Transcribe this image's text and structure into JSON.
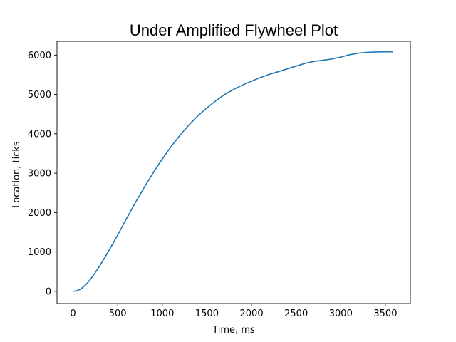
{
  "chart_data": {
    "type": "line",
    "title": "Under Amplified Flywheel Plot",
    "xlabel": "Time, ms",
    "ylabel": "Location, ticks",
    "xlim": [
      -180,
      3780
    ],
    "ylim": [
      -310,
      6350
    ],
    "xticks": [
      0,
      500,
      1000,
      1500,
      2000,
      2500,
      3000,
      3500
    ],
    "yticks": [
      0,
      1000,
      2000,
      3000,
      4000,
      5000,
      6000
    ],
    "grid": false,
    "legend": "none",
    "colors": {
      "series": "#1f77b4"
    },
    "series": [
      {
        "x": [
          0,
          40,
          80,
          120,
          160,
          200,
          250,
          300,
          350,
          400,
          450,
          500,
          600,
          700,
          800,
          900,
          1000,
          1100,
          1200,
          1300,
          1400,
          1500,
          1600,
          1700,
          1800,
          1900,
          2000,
          2100,
          2200,
          2300,
          2400,
          2500,
          2600,
          2700,
          2800,
          2900,
          3000,
          3100,
          3200,
          3300,
          3400,
          3500,
          3580
        ],
        "y": [
          0,
          15,
          50,
          120,
          210,
          320,
          480,
          650,
          840,
          1030,
          1230,
          1430,
          1850,
          2260,
          2650,
          3020,
          3360,
          3680,
          3970,
          4230,
          4460,
          4660,
          4840,
          5000,
          5130,
          5240,
          5340,
          5430,
          5510,
          5580,
          5650,
          5720,
          5790,
          5840,
          5870,
          5900,
          5950,
          6010,
          6050,
          6070,
          6080,
          6085,
          6085
        ]
      }
    ]
  }
}
